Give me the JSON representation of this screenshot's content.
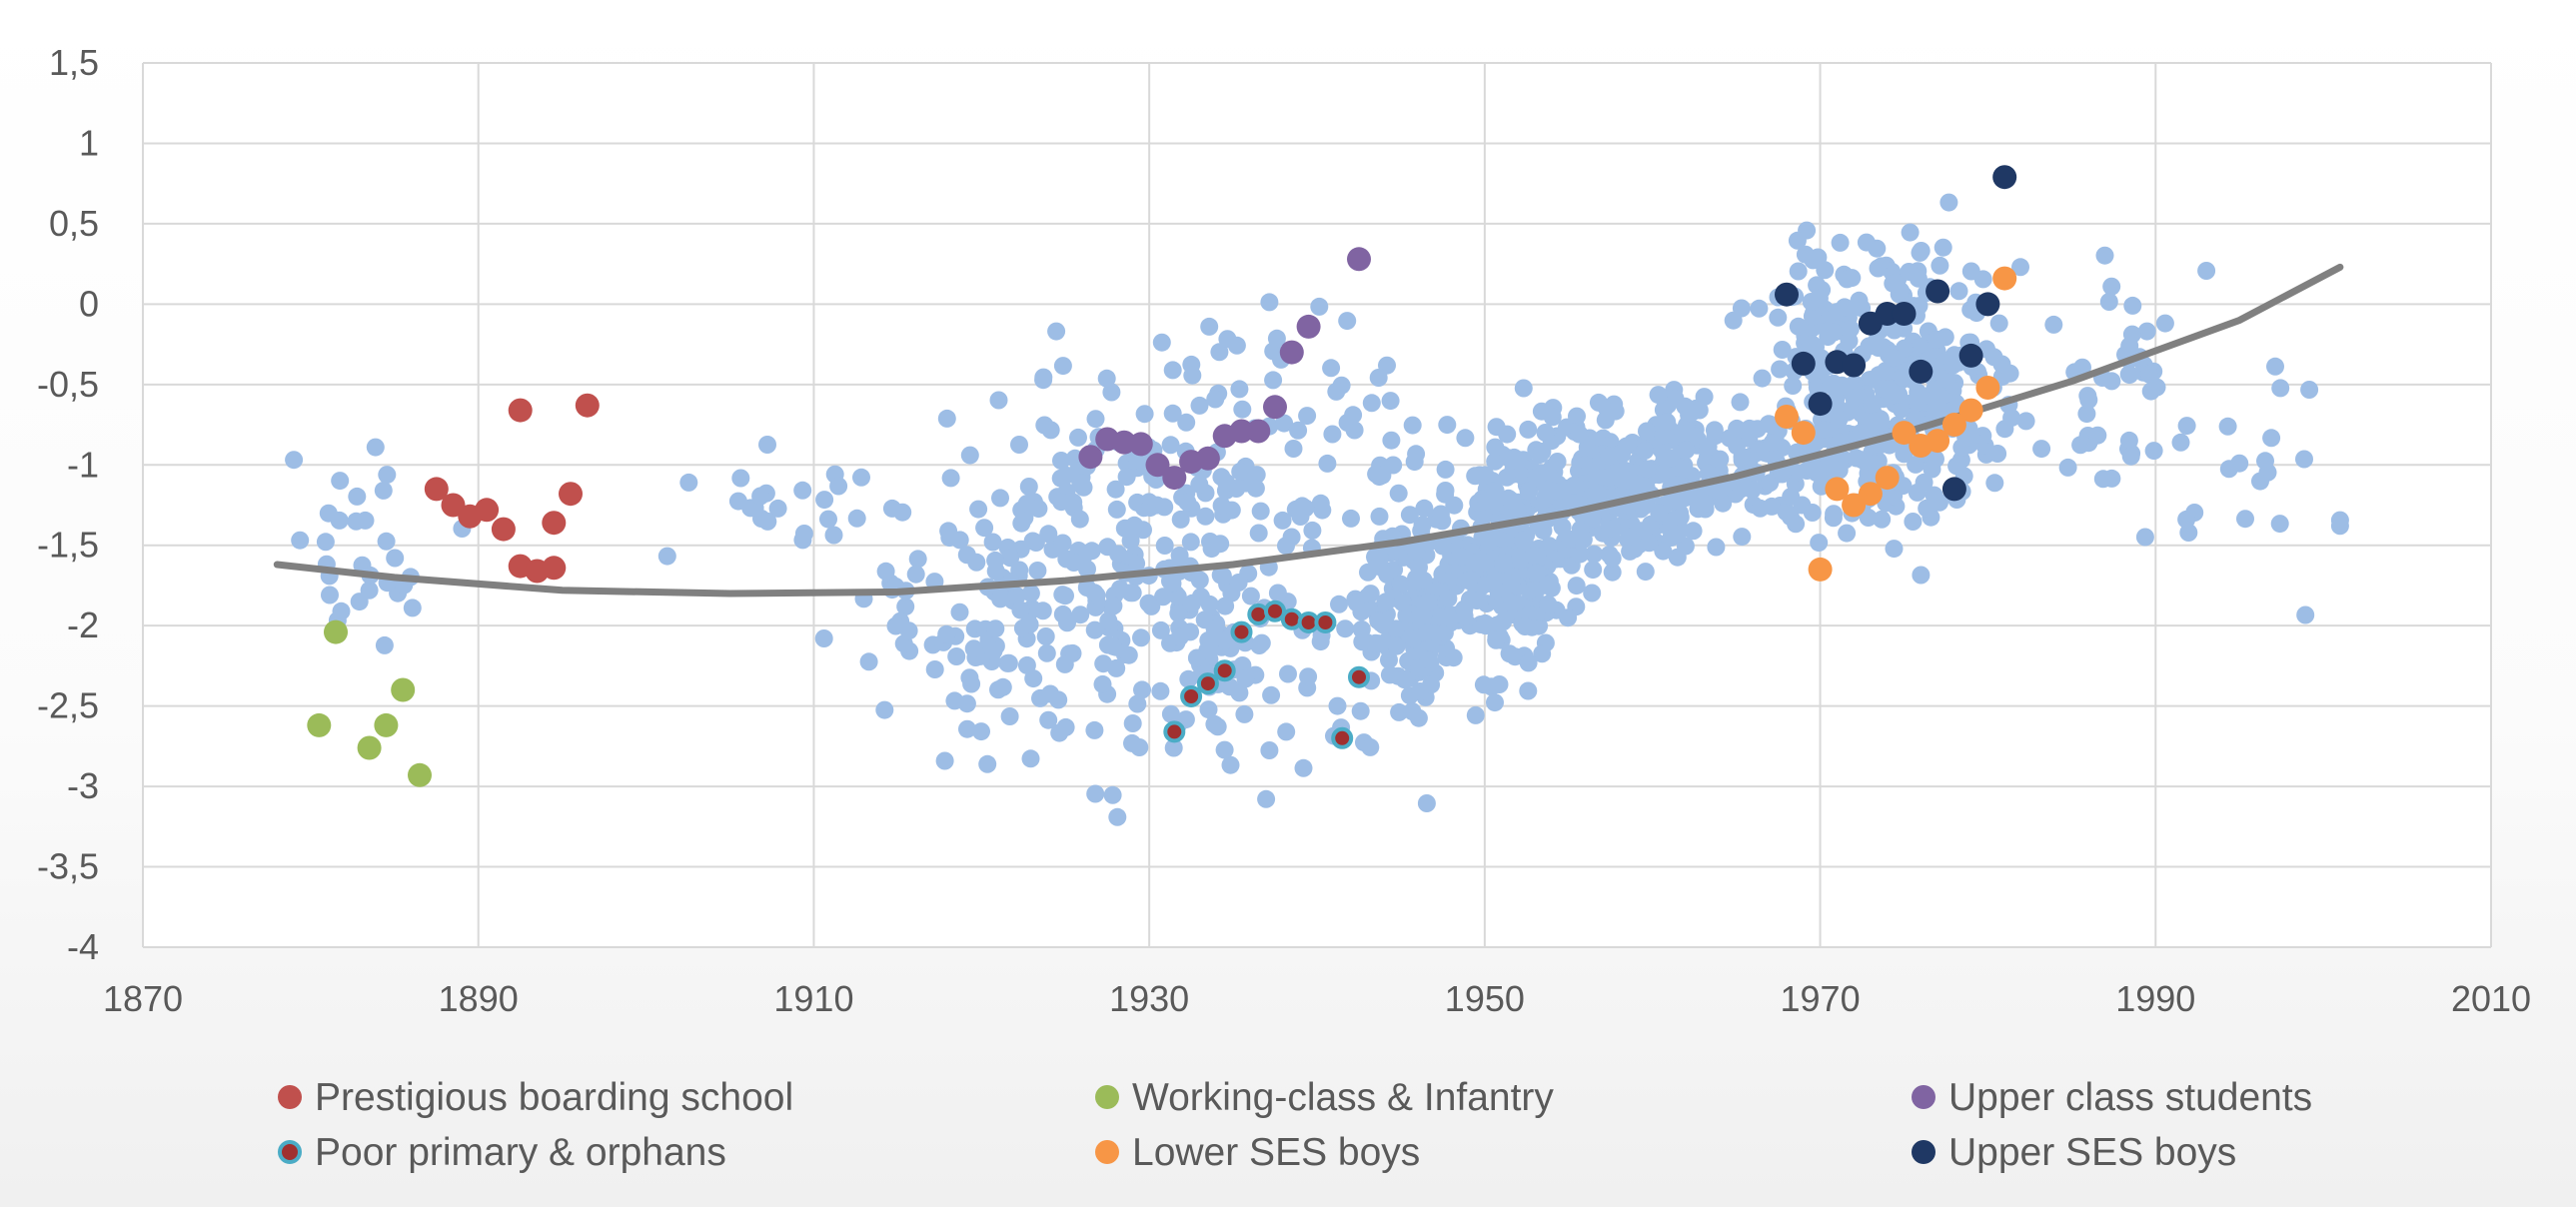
{
  "chart_data": {
    "type": "scatter",
    "xlim": [
      1870,
      2010
    ],
    "ylim": [
      -4,
      1.5
    ],
    "xticks": [
      "1870",
      "1890",
      "1910",
      "1930",
      "1950",
      "1970",
      "1990",
      "2010"
    ],
    "yticks": [
      "1,5",
      "1",
      "0,5",
      "0",
      "-0,5",
      "-1",
      "-1,5",
      "-2",
      "-2,5",
      "-3",
      "-3,5",
      "-4"
    ],
    "grid": "vertical and horizontal major gridlines",
    "legend_position": "bottom",
    "colors": {
      "background_points": "#9dbde5",
      "trend": "#808080",
      "prestigious": "#c0504d",
      "working": "#9bbb59",
      "upper_class": "#8064a2",
      "poor": "#a0302f",
      "poor_outline": "#4bacc6",
      "lower_ses": "#f79646",
      "upper_ses": "#1f3864"
    },
    "trend_line": {
      "x": [
        1878,
        1885,
        1895,
        1905,
        1915,
        1925,
        1935,
        1945,
        1955,
        1965,
        1975,
        1985,
        1995,
        2001
      ],
      "y": [
        -1.62,
        -1.7,
        -1.78,
        -1.8,
        -1.79,
        -1.72,
        -1.62,
        -1.48,
        -1.3,
        -1.07,
        -0.8,
        -0.48,
        -0.1,
        0.23
      ]
    },
    "series": [
      {
        "name": "Prestigious boarding school",
        "x": [
          1887.5,
          1888.5,
          1889.5,
          1890.5,
          1891.5,
          1892.5,
          1892.5,
          1893.5,
          1894.5,
          1894.5,
          1895.5,
          1896.5
        ],
        "y": [
          -1.15,
          -1.25,
          -1.32,
          -1.28,
          -1.4,
          -0.66,
          -1.63,
          -1.66,
          -1.36,
          -1.64,
          -1.18,
          -0.63
        ]
      },
      {
        "name": "Working-class & Infantry",
        "x": [
          1880.5,
          1881.5,
          1883.5,
          1884.5,
          1885.5,
          1886.5
        ],
        "y": [
          -2.62,
          -2.04,
          -2.76,
          -2.62,
          -2.4,
          -2.93
        ]
      },
      {
        "name": "Upper class students",
        "x": [
          1926.5,
          1927.5,
          1928.5,
          1929.5,
          1930.5,
          1931.5,
          1932.5,
          1933.5,
          1934.5,
          1935.5,
          1936.5,
          1937.5,
          1938.5,
          1939.5,
          1942.5
        ],
        "y": [
          -0.95,
          -0.84,
          -0.86,
          -0.87,
          -1.0,
          -1.08,
          -0.98,
          -0.96,
          -0.82,
          -0.79,
          -0.79,
          -0.64,
          -0.3,
          -0.14,
          0.28
        ]
      },
      {
        "name": "Poor primary & orphans",
        "x": [
          1931.5,
          1932.5,
          1933.5,
          1934.5,
          1935.5,
          1936.5,
          1937.5,
          1938.5,
          1939.5,
          1940.5,
          1941.5,
          1942.5
        ],
        "y": [
          -2.66,
          -2.44,
          -2.36,
          -2.28,
          -2.04,
          -1.93,
          -1.91,
          -1.96,
          -1.98,
          -1.98,
          -2.7,
          -2.32
        ]
      },
      {
        "name": "Lower SES boys",
        "x": [
          1968,
          1969,
          1970,
          1971,
          1972,
          1973,
          1974,
          1975,
          1976,
          1977,
          1978,
          1979,
          1980,
          1981
        ],
        "y": [
          -0.7,
          -0.8,
          -1.65,
          -1.15,
          -1.25,
          -1.18,
          -1.08,
          -0.8,
          -0.88,
          -0.85,
          -0.75,
          -0.66,
          -0.52,
          0.16
        ]
      },
      {
        "name": "Upper SES boys",
        "x": [
          1968,
          1969,
          1970,
          1971,
          1972,
          1973,
          1974,
          1975,
          1976,
          1977,
          1978,
          1979,
          1980,
          1981
        ],
        "y": [
          0.06,
          -0.37,
          -0.62,
          -0.36,
          -0.38,
          -0.12,
          -0.06,
          -0.06,
          -0.42,
          0.08,
          -1.15,
          -0.32,
          0.0,
          0.79
        ]
      }
    ],
    "background_clusters": [
      {
        "cx": 1883,
        "cy": -1.6,
        "sx": 2.2,
        "sy": 0.35,
        "n": 30
      },
      {
        "cx": 1910,
        "cy": -1.25,
        "sx": 4.0,
        "sy": 0.2,
        "n": 22
      },
      {
        "cx": 1915,
        "cy": -2.0,
        "sx": 2.0,
        "sy": 0.35,
        "n": 14
      },
      {
        "cx": 1926,
        "cy": -1.75,
        "sx": 5.0,
        "sy": 0.55,
        "n": 230
      },
      {
        "cx": 1936,
        "cy": -1.7,
        "sx": 5.0,
        "sy": 0.6,
        "n": 140
      },
      {
        "cx": 1938,
        "cy": -0.7,
        "sx": 4.0,
        "sy": 0.35,
        "n": 40
      },
      {
        "cx": 1946,
        "cy": -1.9,
        "sx": 2.0,
        "sy": 0.35,
        "n": 160
      },
      {
        "cx": 1951,
        "cy": -1.6,
        "sx": 2.0,
        "sy": 0.3,
        "n": 190
      },
      {
        "cx": 1957,
        "cy": -1.15,
        "sx": 3.5,
        "sy": 0.25,
        "n": 260
      },
      {
        "cx": 1963,
        "cy": -1.0,
        "sx": 3.0,
        "sy": 0.2,
        "n": 120
      },
      {
        "cx": 1974,
        "cy": -0.55,
        "sx": 3.5,
        "sy": 0.45,
        "n": 360
      },
      {
        "cx": 1988,
        "cy": -0.45,
        "sx": 2.0,
        "sy": 0.35,
        "n": 40
      },
      {
        "cx": 1996,
        "cy": -0.9,
        "sx": 3.0,
        "sy": 0.45,
        "n": 24
      }
    ]
  },
  "legend": [
    {
      "label": "Prestigious boarding school",
      "color": "#c0504d",
      "outline": ""
    },
    {
      "label": "Working-class & Infantry",
      "color": "#9bbb59",
      "outline": ""
    },
    {
      "label": "Upper class students",
      "color": "#8064a2",
      "outline": ""
    },
    {
      "label": "Poor primary & orphans",
      "color": "#a0302f",
      "outline": "#4bacc6"
    },
    {
      "label": "Lower SES boys",
      "color": "#f79646",
      "outline": ""
    },
    {
      "label": "Upper SES boys",
      "color": "#1f3864",
      "outline": ""
    }
  ]
}
